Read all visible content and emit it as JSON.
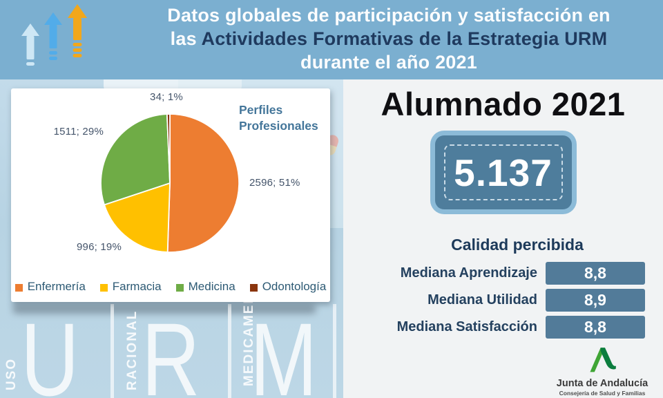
{
  "header": {
    "title_line1": "Datos globales de participación y satisfacción en",
    "title_line2_prefix": "las ",
    "title_line2_highlight": "Actividades Formativas de la Estrategia URM",
    "title_line3": "durante el año 2021",
    "bg_color": "#7BAFD0",
    "highlight_color": "#1F3A5E",
    "arrow_colors": [
      "#CEE7F5",
      "#52ACE9",
      "#F2A71B"
    ]
  },
  "background": {
    "watermark_letters": [
      "U",
      "R",
      "M"
    ],
    "watermark_words": [
      "USO",
      "RACIONAL",
      "MEDICAMENTO"
    ]
  },
  "chart_data": {
    "type": "pie",
    "title": "Perfiles Profesionales",
    "total": 5137,
    "start_angle_deg": 0,
    "direction": "clockwise",
    "legend_position": "bottom",
    "segments": [
      {
        "label": "Enfermería",
        "value": 2596,
        "percent": "51%",
        "data_label": "2596; 51%",
        "color": "#ED7D31"
      },
      {
        "label": "Farmacia",
        "value": 996,
        "percent": "19%",
        "data_label": "996; 19%",
        "color": "#FFC000"
      },
      {
        "label": "Medicina",
        "value": 1511,
        "percent": "29%",
        "data_label": "1511; 29%",
        "color": "#6FAC46"
      },
      {
        "label": "Odontología",
        "value": 34,
        "percent": "1%",
        "data_label": "34; 1%",
        "color": "#8A350D"
      }
    ]
  },
  "students": {
    "title": "Alumnado 2021",
    "count": "5.137",
    "badge_outer_color": "#8CBBD8",
    "badge_inner_color": "#4E7D9C"
  },
  "quality": {
    "title": "Calidad percibida",
    "bar_color": "#527B99",
    "rows": [
      {
        "label": "Mediana Aprendizaje",
        "value": "8,8"
      },
      {
        "label": "Mediana Utilidad",
        "value": "8,9"
      },
      {
        "label": "Mediana Satisfacción",
        "value": "8,8"
      }
    ]
  },
  "footer": {
    "org": "Junta de Andalucía",
    "dept": "Consejería de Salud y Familias",
    "logo_colors": [
      "#3FA535",
      "#0B7D3E"
    ]
  }
}
